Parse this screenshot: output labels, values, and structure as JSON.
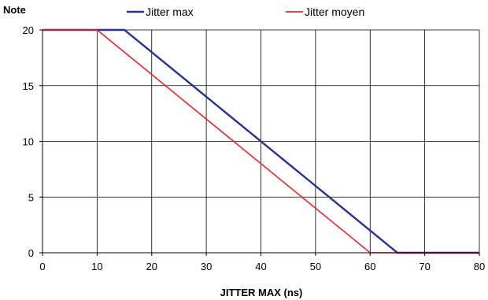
{
  "chart_data": {
    "type": "line",
    "title": "",
    "xlabel": "JITTER MAX  (ns)",
    "ylabel": "Note",
    "xlim": [
      0,
      80
    ],
    "ylim": [
      0,
      20
    ],
    "x_ticks": [
      0,
      10,
      20,
      30,
      40,
      50,
      60,
      70,
      80
    ],
    "y_ticks": [
      0,
      5,
      10,
      15,
      20
    ],
    "grid": true,
    "legend_position": "top",
    "series": [
      {
        "name": "Jitter max",
        "color": "#2b2f8f",
        "points": [
          [
            0,
            20
          ],
          [
            15,
            20
          ],
          [
            65,
            0
          ],
          [
            80,
            0
          ]
        ]
      },
      {
        "name": "Jitter moyen",
        "color": "#e0282e",
        "points": [
          [
            0,
            20
          ],
          [
            10,
            20
          ],
          [
            60,
            0
          ],
          [
            80,
            0
          ]
        ]
      }
    ]
  }
}
